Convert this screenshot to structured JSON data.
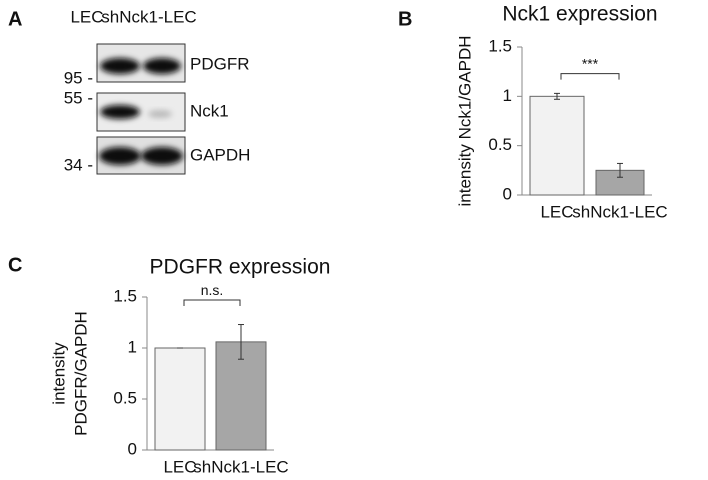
{
  "panels": [
    "A",
    "B",
    "C"
  ],
  "blot": {
    "lanes": [
      "LEC",
      "shNck1-LEC"
    ],
    "bands": [
      "PDGFR",
      "Nck1",
      "GAPDH"
    ],
    "markers": [
      "95 -",
      "55 -",
      "34 -"
    ]
  },
  "chart_data": [
    {
      "type": "bar",
      "title": "Nck1 expression",
      "ylabel": [
        "intensity Nck1/GAPDH"
      ],
      "categories": [
        "LEC",
        "shNck1-LEC"
      ],
      "values": [
        1,
        0.25
      ],
      "errors": [
        0.03,
        0.07
      ],
      "colors": [
        "#f2f2f2",
        "#a6a6a6"
      ],
      "ylim": [
        0,
        1.5
      ],
      "yticks": [
        0,
        0.5,
        1,
        1.5
      ],
      "annotation": "***"
    },
    {
      "type": "bar",
      "title": "PDGFR expression",
      "ylabel": [
        "intensity",
        "PDGFR/GAPDH"
      ],
      "categories": [
        "LEC",
        "shNck1-LEC"
      ],
      "values": [
        1,
        1.06
      ],
      "errors": [
        0,
        0.17
      ],
      "colors": [
        "#f2f2f2",
        "#a6a6a6"
      ],
      "ylim": [
        0,
        1.5
      ],
      "yticks": [
        0,
        0.5,
        1,
        1.5
      ],
      "annotation": "n.s."
    }
  ]
}
